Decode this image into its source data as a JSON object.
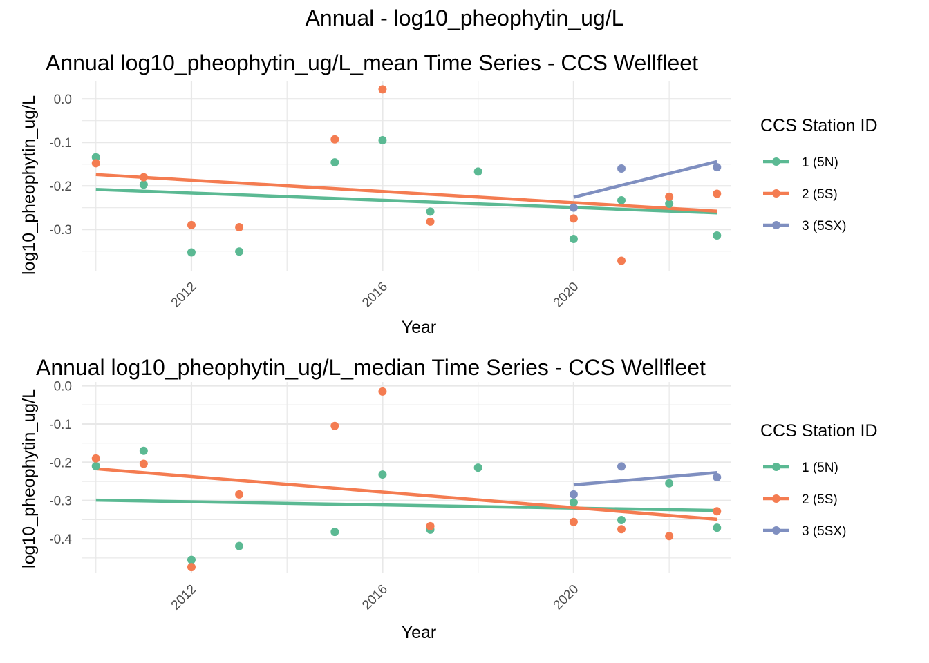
{
  "page_title": "Annual - log10_pheophytin_ug/L",
  "colors": {
    "s1": "#5bb993",
    "s2": "#f47c51",
    "s3": "#7f8fc0",
    "grid": "#e8e8e8"
  },
  "chart_data": [
    {
      "type": "scatter",
      "title": "Annual log10_pheophytin_ug/L_mean Time Series - CCS Wellfleet",
      "xlabel": "Year",
      "ylabel": "log10_pheophytin_ug/L",
      "xlim": [
        2009.7,
        2023.3
      ],
      "ylim": [
        -0.395,
        0.04
      ],
      "x_ticks": [
        2012,
        2016,
        2020
      ],
      "y_ticks": [
        0.0,
        -0.1,
        -0.2,
        -0.3
      ],
      "legend_title": "CCS Station ID",
      "legend_position": "right",
      "grid": true,
      "series": [
        {
          "name": "1 (5N)",
          "color_key": "s1",
          "points": [
            [
              2010,
              -0.134
            ],
            [
              2011,
              -0.197
            ],
            [
              2012,
              -0.353
            ],
            [
              2013,
              -0.351
            ],
            [
              2015,
              -0.146
            ],
            [
              2016,
              -0.095
            ],
            [
              2017,
              -0.259
            ],
            [
              2018,
              -0.167
            ],
            [
              2020,
              -0.322
            ],
            [
              2021,
              -0.233
            ],
            [
              2022,
              -0.241
            ],
            [
              2023,
              -0.314
            ]
          ],
          "trend": [
            [
              2010,
              -0.208
            ],
            [
              2023,
              -0.262
            ]
          ]
        },
        {
          "name": "2 (5S)",
          "color_key": "s2",
          "points": [
            [
              2010,
              -0.148
            ],
            [
              2011,
              -0.18
            ],
            [
              2012,
              -0.29
            ],
            [
              2013,
              -0.295
            ],
            [
              2015,
              -0.093
            ],
            [
              2016,
              0.022
            ],
            [
              2017,
              -0.282
            ],
            [
              2020,
              -0.275
            ],
            [
              2021,
              -0.372
            ],
            [
              2022,
              -0.225
            ],
            [
              2023,
              -0.218
            ]
          ],
          "trend": [
            [
              2010,
              -0.174
            ],
            [
              2023,
              -0.258
            ]
          ]
        },
        {
          "name": "3 (5SX)",
          "color_key": "s3",
          "points": [
            [
              2020,
              -0.25
            ],
            [
              2021,
              -0.16
            ],
            [
              2023,
              -0.157
            ]
          ],
          "trend": [
            [
              2020,
              -0.226
            ],
            [
              2023,
              -0.144
            ]
          ]
        }
      ]
    },
    {
      "type": "scatter",
      "title": "Annual log10_pheophytin_ug/L_median Time Series - CCS Wellfleet",
      "xlabel": "Year",
      "ylabel": "log10_pheophytin_ug/L",
      "xlim": [
        2009.7,
        2023.3
      ],
      "ylim": [
        -0.49,
        0.01
      ],
      "x_ticks": [
        2012,
        2016,
        2020
      ],
      "y_ticks": [
        0.0,
        -0.1,
        -0.2,
        -0.3,
        -0.4
      ],
      "legend_title": "CCS Station ID",
      "legend_position": "right",
      "grid": true,
      "series": [
        {
          "name": "1 (5N)",
          "color_key": "s1",
          "points": [
            [
              2010,
              -0.21
            ],
            [
              2011,
              -0.17
            ],
            [
              2012,
              -0.455
            ],
            [
              2013,
              -0.419
            ],
            [
              2015,
              -0.382
            ],
            [
              2016,
              -0.232
            ],
            [
              2017,
              -0.376
            ],
            [
              2018,
              -0.214
            ],
            [
              2020,
              -0.305
            ],
            [
              2021,
              -0.351
            ],
            [
              2022,
              -0.255
            ],
            [
              2023,
              -0.371
            ]
          ],
          "trend": [
            [
              2010,
              -0.299
            ],
            [
              2023,
              -0.326
            ]
          ]
        },
        {
          "name": "2 (5S)",
          "color_key": "s2",
          "points": [
            [
              2010,
              -0.19
            ],
            [
              2011,
              -0.204
            ],
            [
              2012,
              -0.474
            ],
            [
              2013,
              -0.284
            ],
            [
              2015,
              -0.105
            ],
            [
              2016,
              -0.015
            ],
            [
              2017,
              -0.367
            ],
            [
              2020,
              -0.356
            ],
            [
              2021,
              -0.375
            ],
            [
              2022,
              -0.393
            ],
            [
              2023,
              -0.328
            ]
          ],
          "trend": [
            [
              2010,
              -0.217
            ],
            [
              2023,
              -0.349
            ]
          ]
        },
        {
          "name": "3 (5SX)",
          "color_key": "s3",
          "points": [
            [
              2020,
              -0.284
            ],
            [
              2021,
              -0.211
            ],
            [
              2023,
              -0.239
            ]
          ],
          "trend": [
            [
              2020,
              -0.259
            ],
            [
              2023,
              -0.227
            ]
          ]
        }
      ]
    }
  ]
}
